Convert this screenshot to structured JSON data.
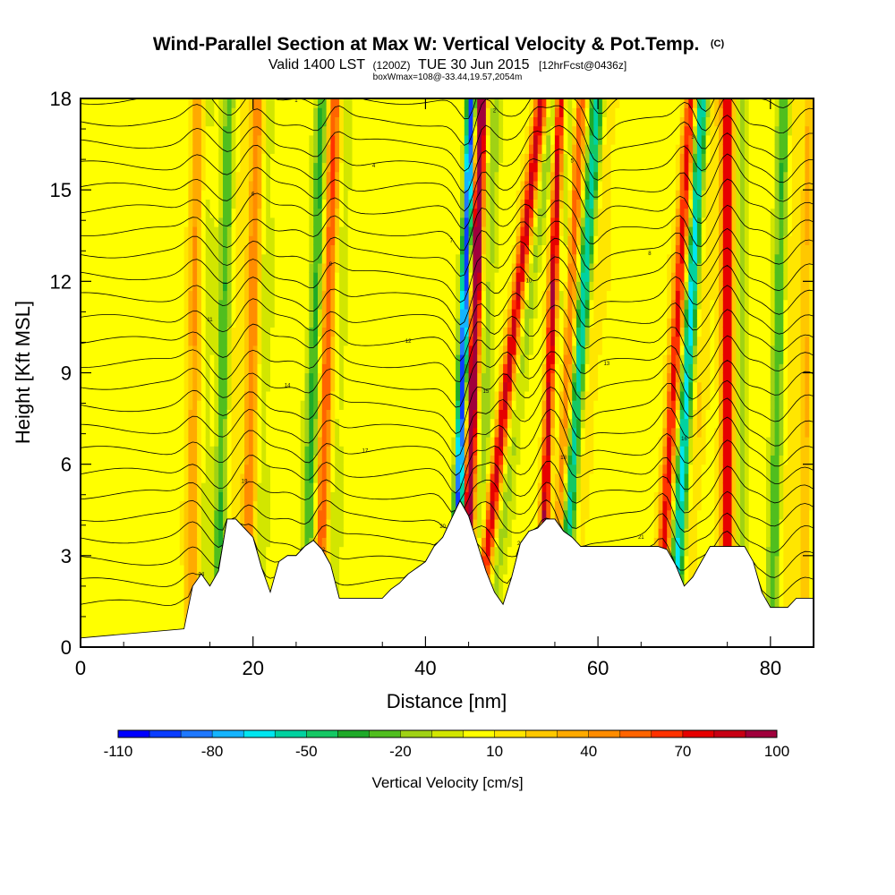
{
  "chart_data": {
    "type": "heatmap",
    "title": "Wind-Parallel Section at Max W: Vertical Velocity & Pot.Temp.",
    "title_mark": "(C)",
    "subtitle": {
      "valid": "Valid 1400 LST",
      "utc": "(1200Z)",
      "date": "TUE 30 Jun 2015",
      "forecast": "[12hrFcst@0436z]"
    },
    "box_note": "boxWmax=108@-33.44,19.57,2054m",
    "xlabel": "Distance [nm]",
    "ylabel": "Height [Kft MSL]",
    "xlim": [
      0,
      85
    ],
    "ylim": [
      0,
      18
    ],
    "x_ticks": [
      0,
      20,
      40,
      60,
      80
    ],
    "y_ticks": [
      0,
      3,
      6,
      9,
      12,
      15,
      18
    ],
    "colorbar": {
      "title": "Vertical Velocity [cm/s]",
      "labels": [
        "-110",
        "-80",
        "-50",
        "-20",
        "10",
        "40",
        "70",
        "100"
      ],
      "levels": [
        -110,
        100
      ],
      "colors": [
        "#0000ff",
        "#0a3cff",
        "#1e78ff",
        "#14b4ff",
        "#00e6f0",
        "#00d2a0",
        "#14c864",
        "#1eaa28",
        "#50be1e",
        "#a0d214",
        "#d2e600",
        "#ffff00",
        "#ffe600",
        "#ffc800",
        "#ffaa00",
        "#ff8c00",
        "#ff6400",
        "#ff3200",
        "#e60000",
        "#c80014",
        "#a0003c"
      ]
    },
    "base_color": "#b4dc00",
    "terrain_profile": {
      "x": [
        0,
        12,
        13,
        14,
        15,
        16,
        17,
        18,
        20,
        21,
        22,
        23,
        24,
        25,
        26,
        27,
        28,
        29,
        30,
        31,
        32,
        33,
        34,
        35,
        36,
        37,
        38,
        39,
        40,
        41,
        42,
        43,
        44,
        45,
        46,
        47,
        48,
        49,
        50,
        51,
        52,
        53,
        54,
        55,
        56,
        57,
        58,
        59,
        60,
        61,
        62,
        63,
        64,
        65,
        66,
        67,
        68,
        69,
        70,
        71,
        72,
        73,
        74,
        75,
        76,
        77,
        78,
        79,
        80,
        81,
        82,
        83,
        84,
        85
      ],
      "height": [
        0.3,
        0.6,
        2.0,
        2.4,
        2.0,
        2.5,
        4.2,
        4.2,
        3.6,
        2.6,
        1.8,
        2.8,
        3.0,
        3.0,
        3.3,
        3.5,
        3.2,
        2.7,
        1.6,
        1.6,
        1.6,
        1.6,
        1.6,
        1.6,
        1.9,
        2.1,
        2.4,
        2.6,
        2.8,
        3.3,
        3.6,
        4.2,
        4.8,
        4.3,
        3.4,
        2.5,
        1.8,
        1.4,
        2.3,
        3.4,
        3.8,
        3.9,
        4.2,
        4.2,
        3.8,
        3.6,
        3.3,
        3.3,
        3.3,
        3.3,
        3.3,
        3.3,
        3.3,
        3.3,
        3.3,
        3.3,
        3.2,
        2.7,
        2.0,
        2.3,
        2.8,
        3.3,
        3.3,
        3.3,
        3.3,
        3.3,
        2.8,
        1.8,
        1.3,
        1.3,
        1.3,
        1.6,
        1.6,
        1.6
      ]
    },
    "updrafts": [
      {
        "x": 13.0,
        "shift": 0.5,
        "w": 35
      },
      {
        "x": 19.5,
        "shift": 1.0,
        "w": 45
      },
      {
        "x": 28.0,
        "shift": 1.5,
        "w": 45
      },
      {
        "x": 45.0,
        "shift": 1.5,
        "w": 95
      },
      {
        "x": 47.5,
        "shift": 6.0,
        "w": 80
      },
      {
        "x": 53.8,
        "shift": 1.8,
        "w": 85
      },
      {
        "x": 55.5,
        "shift": 2.5,
        "w": 60
      },
      {
        "x": 67.8,
        "shift": 3.0,
        "w": 70
      },
      {
        "x": 75.0,
        "shift": 0.0,
        "w": 80
      },
      {
        "x": 84.0,
        "shift": 0.5,
        "w": 25
      }
    ],
    "downdrafts": [
      {
        "x": 16.2,
        "shift": 1.0,
        "w": -35
      },
      {
        "x": 26.5,
        "shift": 1.5,
        "w": -40
      },
      {
        "x": 43.8,
        "shift": 1.5,
        "w": -105
      },
      {
        "x": 56.5,
        "shift": 3.5,
        "w": -50
      },
      {
        "x": 69.5,
        "shift": 2.5,
        "w": -55
      },
      {
        "x": 80.5,
        "shift": 1.0,
        "w": -35
      }
    ],
    "theta_labels": [
      "24",
      "23",
      "22",
      "21",
      "20",
      "19",
      "18",
      "17",
      "16",
      "15",
      "14",
      "13",
      "12",
      "11",
      "10",
      "9",
      "8",
      "7",
      "6",
      "5",
      "4",
      "3",
      "2",
      "1"
    ]
  }
}
